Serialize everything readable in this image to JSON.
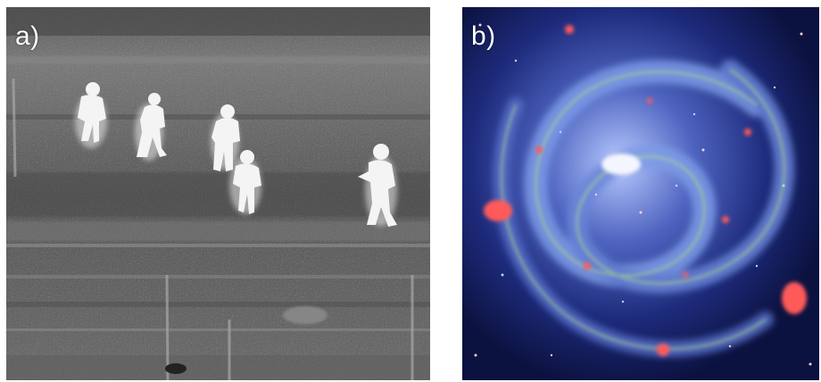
{
  "panels": [
    {
      "label": "a)",
      "content": "thermal-infrared-people-in-field"
    },
    {
      "label": "b)",
      "content": "spiral-galaxy-false-color"
    }
  ],
  "colors": {
    "thermal_background": "#6f6f6f",
    "thermal_hot": "#f5f5f5",
    "galaxy_background": "#111a52",
    "galaxy_arm": "#6f8fd8",
    "galaxy_red": "#ff5050",
    "galaxy_green": "#b8e08a"
  }
}
